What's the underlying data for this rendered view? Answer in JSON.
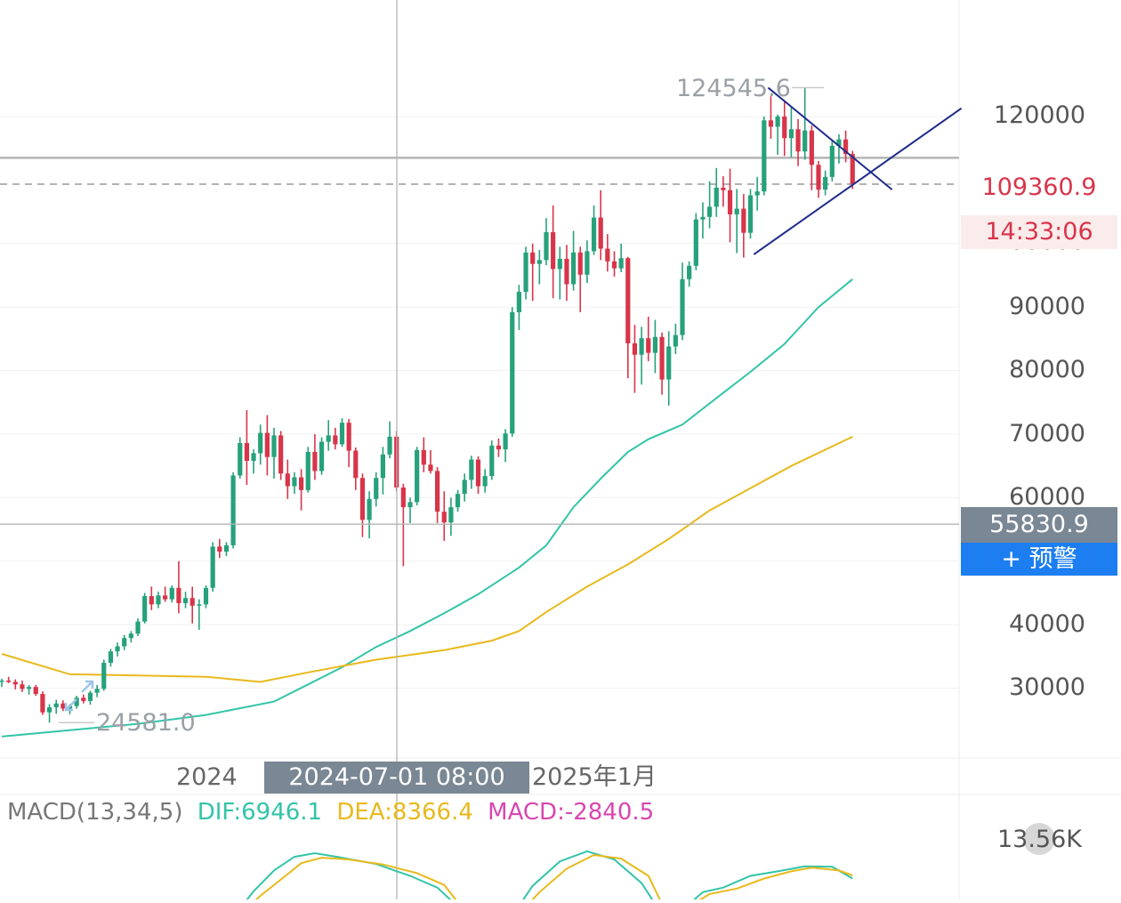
{
  "chart_data": {
    "type": "candlestick",
    "price_axis": {
      "ticks": [
        "120000",
        "90000",
        "80000",
        "70000",
        "60000",
        "40000",
        "30000"
      ],
      "partial_tick": "100000"
    },
    "time_axis": {
      "labels": [
        "2024",
        "2025年1月"
      ],
      "crosshair_time": "2024-07-01 08:00"
    },
    "annotations": {
      "high": "124545.6",
      "low": "24581.0"
    },
    "last_price": "109360.9",
    "countdown": "14:33:06",
    "crosshair_price": "55830.9",
    "colors": {
      "up": "#26a17b",
      "down": "#d8354a",
      "ma_fast": "#33c4a8",
      "ma_slow": "#e8b91c",
      "trendline": "#1f2c8a",
      "dif": "#33c4a8",
      "dea": "#e8b91c",
      "macd": "#d946b0"
    },
    "candles": [
      [
        31000,
        31500,
        30200,
        31200
      ],
      [
        31200,
        31800,
        30800,
        31000
      ],
      [
        31000,
        31400,
        29800,
        30600
      ],
      [
        30600,
        31200,
        29400,
        29900
      ],
      [
        29900,
        30500,
        29000,
        30200
      ],
      [
        30200,
        30500,
        28800,
        29100
      ],
      [
        29100,
        29500,
        25800,
        26200
      ],
      [
        26200,
        27500,
        24581,
        27000
      ],
      [
        27000,
        28200,
        26000,
        27600
      ],
      [
        27600,
        28100,
        26400,
        26800
      ],
      [
        26800,
        27500,
        25900,
        27200
      ],
      [
        27200,
        28800,
        26800,
        28500
      ],
      [
        28500,
        29000,
        27600,
        28000
      ],
      [
        28000,
        29600,
        27400,
        29300
      ],
      [
        29300,
        30500,
        28600,
        29900
      ],
      [
        29900,
        34500,
        29600,
        34000
      ],
      [
        34000,
        36200,
        33400,
        35800
      ],
      [
        35800,
        37200,
        35000,
        36600
      ],
      [
        36600,
        38400,
        36000,
        37900
      ],
      [
        37900,
        39000,
        37200,
        38600
      ],
      [
        38600,
        41000,
        38200,
        40500
      ],
      [
        40500,
        45000,
        40200,
        44500
      ],
      [
        44500,
        46000,
        42300,
        43200
      ],
      [
        43200,
        45200,
        42600,
        44600
      ],
      [
        44600,
        46000,
        43600,
        44000
      ],
      [
        44000,
        46200,
        43500,
        45800
      ],
      [
        45800,
        50000,
        41800,
        43400
      ],
      [
        43400,
        45200,
        42600,
        44200
      ],
      [
        44200,
        46000,
        40200,
        43000
      ],
      [
        43000,
        44000,
        39200,
        43200
      ],
      [
        43200,
        46200,
        42600,
        45800
      ],
      [
        45800,
        53000,
        45200,
        52300
      ],
      [
        52300,
        53500,
        50500,
        51500
      ],
      [
        51500,
        53000,
        50800,
        52500
      ],
      [
        52500,
        64000,
        52000,
        63500
      ],
      [
        63500,
        69500,
        63000,
        68600
      ],
      [
        68600,
        73800,
        62000,
        65800
      ],
      [
        65800,
        67600,
        63800,
        67000
      ],
      [
        67000,
        71500,
        65200,
        70200
      ],
      [
        70200,
        73000,
        63500,
        66400
      ],
      [
        66400,
        71000,
        63000,
        69800
      ],
      [
        69800,
        70500,
        62800,
        63800
      ],
      [
        63800,
        66000,
        59800,
        61800
      ],
      [
        61800,
        64000,
        60600,
        63200
      ],
      [
        63200,
        64500,
        58000,
        61200
      ],
      [
        61200,
        68000,
        60800,
        67200
      ],
      [
        67200,
        70000,
        62800,
        64200
      ],
      [
        64200,
        69500,
        63600,
        68800
      ],
      [
        68800,
        72200,
        67400,
        69800
      ],
      [
        69800,
        71000,
        67600,
        68400
      ],
      [
        68400,
        72500,
        68000,
        71800
      ],
      [
        71800,
        72400,
        64800,
        67400
      ],
      [
        67400,
        67900,
        61200,
        63100
      ],
      [
        63100,
        63800,
        53800,
        56500
      ],
      [
        56500,
        61000,
        53600,
        59800
      ],
      [
        59800,
        64000,
        58600,
        63100
      ],
      [
        63100,
        68000,
        60500,
        66800
      ],
      [
        66800,
        72000,
        66200,
        69600
      ],
      [
        69600,
        70500,
        61000,
        61600
      ],
      [
        61600,
        62200,
        49200,
        58500
      ],
      [
        58500,
        60000,
        56000,
        59300
      ],
      [
        59300,
        68000,
        58800,
        67500
      ],
      [
        67500,
        69500,
        64000,
        65200
      ],
      [
        65200,
        67500,
        63800,
        64200
      ],
      [
        64200,
        64800,
        56000,
        57800
      ],
      [
        57800,
        61000,
        53200,
        56100
      ],
      [
        56100,
        60000,
        54000,
        58500
      ],
      [
        58500,
        61200,
        57800,
        60600
      ],
      [
        60600,
        63800,
        59400,
        62800
      ],
      [
        62800,
        66600,
        61400,
        66000
      ],
      [
        66000,
        66500,
        60600,
        61800
      ],
      [
        61800,
        64500,
        60800,
        63400
      ],
      [
        63400,
        69000,
        62800,
        68200
      ],
      [
        68200,
        69300,
        66400,
        67600
      ],
      [
        67600,
        70800,
        65600,
        70100
      ],
      [
        70100,
        90000,
        69600,
        89200
      ],
      [
        89200,
        93500,
        86400,
        92400
      ],
      [
        92400,
        99500,
        91200,
        98600
      ],
      [
        98600,
        100000,
        91000,
        96800
      ],
      [
        96800,
        99000,
        93600,
        97400
      ],
      [
        97400,
        104000,
        96600,
        101800
      ],
      [
        101800,
        106000,
        91400,
        96000
      ],
      [
        96000,
        99500,
        91200,
        97600
      ],
      [
        97600,
        99800,
        91000,
        93600
      ],
      [
        93600,
        102000,
        92600,
        98600
      ],
      [
        98600,
        99500,
        89200,
        95100
      ],
      [
        95100,
        100500,
        93800,
        98800
      ],
      [
        98800,
        106000,
        98200,
        104100
      ],
      [
        104100,
        108400,
        97400,
        99200
      ],
      [
        99200,
        101500,
        95600,
        97200
      ],
      [
        97200,
        98800,
        94800,
        96100
      ],
      [
        96100,
        100000,
        95500,
        97700
      ],
      [
        97700,
        97900,
        78800,
        84300
      ],
      [
        84300,
        87200,
        76500,
        82500
      ],
      [
        82500,
        86900,
        77800,
        85100
      ],
      [
        85100,
        88500,
        81500,
        82800
      ],
      [
        82800,
        88000,
        79600,
        85300
      ],
      [
        85300,
        86000,
        76200,
        78600
      ],
      [
        78600,
        86200,
        74500,
        83800
      ],
      [
        83800,
        87400,
        82600,
        85600
      ],
      [
        85600,
        97000,
        84800,
        94400
      ],
      [
        94400,
        97200,
        93200,
        96500
      ],
      [
        96500,
        104800,
        95800,
        103800
      ],
      [
        103800,
        106500,
        100800,
        104200
      ],
      [
        104200,
        109800,
        102400,
        105800
      ],
      [
        105800,
        111900,
        104200,
        108800
      ],
      [
        108800,
        110600,
        105800,
        108400
      ],
      [
        108400,
        111800,
        100200,
        104600
      ],
      [
        104600,
        108600,
        98500,
        105500
      ],
      [
        105500,
        107800,
        97800,
        101700
      ],
      [
        101700,
        108600,
        100800,
        107600
      ],
      [
        107600,
        110500,
        105200,
        108200
      ],
      [
        108200,
        120000,
        107600,
        119400
      ],
      [
        119400,
        123200,
        116500,
        118400
      ],
      [
        118400,
        120300,
        114000,
        120000
      ],
      [
        120000,
        122300,
        113800,
        116600
      ],
      [
        116600,
        121400,
        113600,
        118000
      ],
      [
        118000,
        119600,
        112200,
        114500
      ],
      [
        114500,
        124545.6,
        113200,
        117800
      ],
      [
        117800,
        118600,
        108400,
        112400
      ],
      [
        112400,
        113000,
        107200,
        108500
      ],
      [
        108500,
        111500,
        107600,
        110500
      ],
      [
        110500,
        116200,
        109800,
        115400
      ],
      [
        115400,
        117200,
        112600,
        116400
      ],
      [
        116400,
        117800,
        112800,
        114100
      ],
      [
        114100,
        114600,
        108600,
        109360.9
      ]
    ],
    "ma_fast": [
      [
        0,
        22400
      ],
      [
        10,
        23400
      ],
      [
        20,
        24400
      ],
      [
        30,
        25800
      ],
      [
        40,
        27900
      ],
      [
        45,
        30600
      ],
      [
        50,
        33300
      ],
      [
        55,
        36500
      ],
      [
        60,
        39000
      ],
      [
        65,
        41800
      ],
      [
        70,
        44800
      ],
      [
        76,
        49000
      ],
      [
        80,
        52500
      ],
      [
        84,
        58500
      ],
      [
        88,
        63000
      ],
      [
        92,
        67200
      ],
      [
        95,
        69200
      ],
      [
        100,
        71500
      ],
      [
        106,
        76500
      ],
      [
        110,
        79800
      ],
      [
        115,
        84200
      ],
      [
        120,
        90000
      ],
      [
        125,
        94400
      ]
    ],
    "ma_slow": [
      [
        0,
        35400
      ],
      [
        10,
        32200
      ],
      [
        20,
        32000
      ],
      [
        30,
        31800
      ],
      [
        38,
        31000
      ],
      [
        45,
        32500
      ],
      [
        55,
        34500
      ],
      [
        65,
        36000
      ],
      [
        72,
        37500
      ],
      [
        76,
        39000
      ],
      [
        80,
        42000
      ],
      [
        86,
        46000
      ],
      [
        92,
        49500
      ],
      [
        98,
        53500
      ],
      [
        104,
        58000
      ],
      [
        110,
        61500
      ],
      [
        116,
        65000
      ],
      [
        125,
        69600
      ]
    ],
    "trendlines": [
      {
        "x1": 112.6,
        "y1": 124545.6,
        "x2": 130.8,
        "y2": 108500
      },
      {
        "x1": 110.5,
        "y1": 98300,
        "x2": 141,
        "y2": 121300
      }
    ],
    "macd": {
      "label": "MACD(13,34,5)",
      "dif_label": "DIF:6946.1",
      "dea_label": "DEA:8366.4",
      "macd_label": "MACD:-2840.5",
      "scale_label": "13.56K",
      "dif": [
        [
          35,
          -2000
        ],
        [
          37,
          1800
        ],
        [
          40,
          6400
        ],
        [
          43,
          9400
        ],
        [
          46,
          10200
        ],
        [
          50,
          9200
        ],
        [
          55,
          7800
        ],
        [
          60,
          5200
        ],
        [
          64,
          2600
        ],
        [
          67,
          -1600
        ],
        [
          76,
          -1400
        ],
        [
          78,
          3000
        ],
        [
          82,
          8400
        ],
        [
          86,
          10600
        ],
        [
          90,
          8800
        ],
        [
          94,
          3600
        ],
        [
          96,
          -1000
        ],
        [
          101,
          -1000
        ],
        [
          103,
          1600
        ],
        [
          106,
          2600
        ],
        [
          110,
          5200
        ],
        [
          114,
          6200
        ],
        [
          118,
          7300
        ],
        [
          122,
          7200
        ],
        [
          125,
          4600
        ]
      ],
      "dea": [
        [
          36,
          -2000
        ],
        [
          38,
          800
        ],
        [
          41,
          4400
        ],
        [
          44,
          8000
        ],
        [
          47,
          9200
        ],
        [
          51,
          8800
        ],
        [
          56,
          7700
        ],
        [
          61,
          5800
        ],
        [
          65,
          3200
        ],
        [
          67.5,
          -1600
        ],
        [
          77,
          -1600
        ],
        [
          79,
          1600
        ],
        [
          83,
          6800
        ],
        [
          87,
          9800
        ],
        [
          91,
          9000
        ],
        [
          95,
          5200
        ],
        [
          97,
          -1000
        ],
        [
          102,
          -600
        ],
        [
          104,
          1200
        ],
        [
          108,
          2400
        ],
        [
          112,
          4600
        ],
        [
          116,
          6200
        ],
        [
          119,
          7000
        ],
        [
          123,
          6400
        ],
        [
          125,
          5300
        ]
      ]
    }
  },
  "ui": {
    "alert_label": "+ 预警"
  }
}
